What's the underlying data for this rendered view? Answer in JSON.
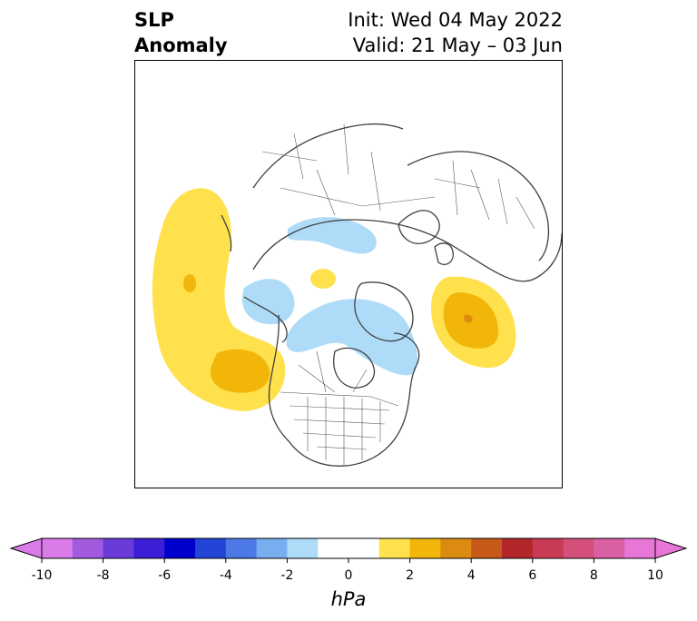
{
  "title": {
    "left_line1": "SLP",
    "left_line2": "Anomaly",
    "right_line1": "Init: Wed 04 May 2022",
    "right_line2": "Valid: 21 May – 03 Jun"
  },
  "colorbar": {
    "unit": "hPa",
    "ticks": [
      "-10",
      "-8",
      "-6",
      "-4",
      "-2",
      "0",
      "2",
      "4",
      "6",
      "8",
      "10"
    ],
    "tick_values": [
      -10,
      -8,
      -6,
      -4,
      -2,
      0,
      2,
      4,
      6,
      8,
      10
    ],
    "levels": [
      -10,
      -9,
      -8,
      -7,
      -6,
      -5,
      -4,
      -3,
      -2,
      -1,
      1,
      2,
      3,
      4,
      5,
      6,
      7,
      8,
      9,
      10
    ],
    "colors": [
      "#d97be8",
      "#a25adf",
      "#6a3bd9",
      "#3b1ed5",
      "#0000cd",
      "#2444d8",
      "#4d79e6",
      "#78aef0",
      "#aedcf8",
      "#ffffff",
      "#ffe14d",
      "#f2b50a",
      "#dc8b12",
      "#c85a19",
      "#b3272a",
      "#c93b55",
      "#d4507a",
      "#da60a4",
      "#e876d6"
    ],
    "under_color": "#d97be8",
    "over_color": "#e876d6"
  },
  "map": {
    "projection": "north-polar-stereographic",
    "anomalies": [
      {
        "name": "north-pacific-high",
        "sign": "positive",
        "peak_hpa": 2.5
      },
      {
        "name": "northeast-pacific-high",
        "sign": "positive",
        "peak_hpa": 2.5
      },
      {
        "name": "north-atlantic-high",
        "sign": "positive",
        "peak_hpa": 4.5
      },
      {
        "name": "arctic-small-high",
        "sign": "positive",
        "peak_hpa": 1.5
      },
      {
        "name": "canadian-archipelago-low",
        "sign": "negative",
        "peak_hpa": -1.5
      },
      {
        "name": "siberian-low",
        "sign": "negative",
        "peak_hpa": -1.5
      },
      {
        "name": "alaska-low",
        "sign": "negative",
        "peak_hpa": -1.5
      }
    ]
  }
}
